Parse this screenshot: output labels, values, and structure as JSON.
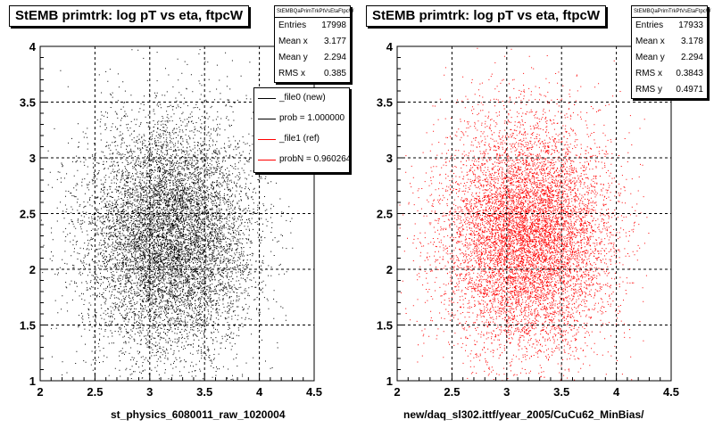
{
  "chart_data": [
    {
      "type": "scatter",
      "title": "StEMB primtrk: log pT vs eta, ftpcW",
      "xlabel": "st_physics_6080011_raw_1020004",
      "ylabel": "",
      "xlim": [
        2,
        4.5
      ],
      "ylim": [
        1,
        4
      ],
      "xticks": [
        "2",
        "2.5",
        "3",
        "3.5",
        "4",
        "4.5"
      ],
      "yticks": [
        "1",
        "1.5",
        "2",
        "2.5",
        "3",
        "3.5",
        "4"
      ],
      "grid": true,
      "marker_color": "#000000",
      "entries_total": 17998,
      "distribution": {
        "mean_x": 3.177,
        "mean_y": 2.294,
        "sigma_x": 0.385,
        "sigma_y": 0.5
      },
      "stats": {
        "header": "StEMBQaPrimTrkPtVsEtaFtpcW",
        "rows": [
          {
            "label": "Entries",
            "value": "17998"
          },
          {
            "label": "Mean x",
            "value": "3.177"
          },
          {
            "label": "Mean y",
            "value": "2.294"
          },
          {
            "label": "RMS x",
            "value": "0.385"
          }
        ]
      },
      "legend": {
        "placement": "top-right",
        "entries": [
          {
            "label": "_file0 (new)",
            "color": "#000000"
          },
          {
            "label": "prob = 1.000000",
            "color": "#000000"
          },
          {
            "label": "_file1 (ref)",
            "color": "#ff0000"
          },
          {
            "label": "probN = 0.960264",
            "color": "#ff0000"
          }
        ]
      }
    },
    {
      "type": "scatter",
      "title": "StEMB primtrk: log pT vs eta, ftpcW",
      "xlabel": "new/daq_sl302.ittf/year_2005/CuCu62_MinBias/",
      "ylabel": "",
      "xlim": [
        2,
        4.5
      ],
      "ylim": [
        1,
        4
      ],
      "xticks": [
        "2",
        "2.5",
        "3",
        "3.5",
        "4",
        "4.5"
      ],
      "yticks": [
        "1",
        "1.5",
        "2",
        "2.5",
        "3",
        "3.5",
        "4"
      ],
      "grid": true,
      "marker_color": "#ff0000",
      "entries_total": 17933,
      "distribution": {
        "mean_x": 3.178,
        "mean_y": 2.294,
        "sigma_x": 0.3843,
        "sigma_y": 0.4971
      },
      "stats": {
        "header": "StEMBQaPrimTrkPtVsEtaFtpcW",
        "rows": [
          {
            "label": "Entries",
            "value": "17933"
          },
          {
            "label": "Mean x",
            "value": "3.178"
          },
          {
            "label": "Mean y",
            "value": "2.294"
          },
          {
            "label": "RMS x",
            "value": "0.3843"
          },
          {
            "label": "RMS y",
            "value": "0.4971"
          }
        ]
      }
    }
  ]
}
